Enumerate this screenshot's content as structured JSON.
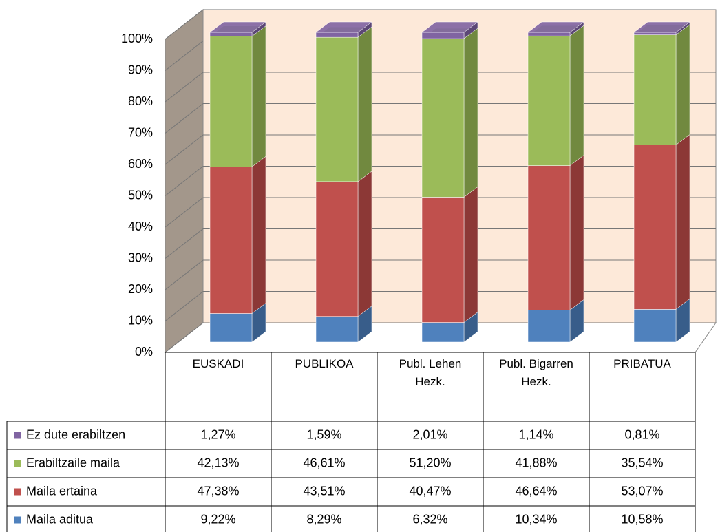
{
  "chart_data": {
    "type": "bar3d_stacked",
    "categories": [
      "EUSKADI",
      "PUBLIKOA",
      "Publ. Lehen Hezk.",
      "Publ. Bigarren Hezk.",
      "PRIBATUA"
    ],
    "series": [
      {
        "name": "Maila aditua",
        "color": "#4f81bd",
        "side": "#385d8a",
        "values": [
          9.22,
          8.29,
          6.32,
          10.34,
          10.58
        ],
        "value_labels": [
          "9,22%",
          "8,29%",
          "6,32%",
          "10,34%",
          "10,58%"
        ]
      },
      {
        "name": "Maila ertaina",
        "color": "#c0504d",
        "side": "#8c3836",
        "values": [
          47.38,
          43.51,
          40.47,
          46.64,
          53.07
        ],
        "value_labels": [
          "47,38%",
          "43,51%",
          "40,47%",
          "46,64%",
          "53,07%"
        ]
      },
      {
        "name": "Erabiltzaile maila",
        "color": "#9bbb59",
        "side": "#71893f",
        "values": [
          42.13,
          46.61,
          51.2,
          41.88,
          35.54
        ],
        "value_labels": [
          "42,13%",
          "46,61%",
          "51,20%",
          "41,88%",
          "35,54%"
        ]
      },
      {
        "name": "Ez dute erabiltzen",
        "color": "#8064a2",
        "side": "#5c4776",
        "values": [
          1.27,
          1.59,
          2.01,
          1.14,
          0.81
        ],
        "value_labels": [
          "1,27%",
          "1,59%",
          "2,01%",
          "1,14%",
          "0,81%"
        ]
      }
    ],
    "ylim": [
      0,
      100
    ],
    "yticks": [
      {
        "value": 0,
        "label": "0%"
      },
      {
        "value": 10,
        "label": "10%"
      },
      {
        "value": 20,
        "label": "20%"
      },
      {
        "value": 30,
        "label": "30%"
      },
      {
        "value": 40,
        "label": "40%"
      },
      {
        "value": 50,
        "label": "50%"
      },
      {
        "value": 60,
        "label": "60%"
      },
      {
        "value": 70,
        "label": "70%"
      },
      {
        "value": 80,
        "label": "80%"
      },
      {
        "value": 90,
        "label": "90%"
      },
      {
        "value": 100,
        "label": "100%"
      }
    ],
    "grid": true
  }
}
